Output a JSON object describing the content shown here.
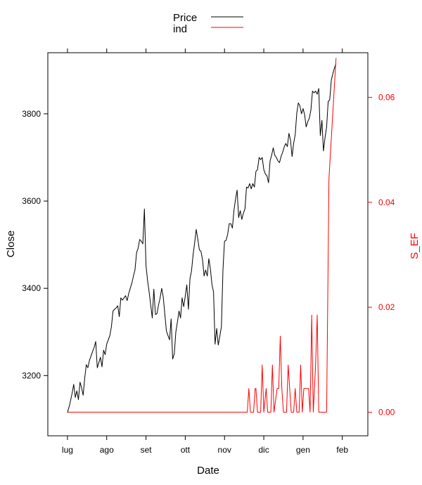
{
  "chart_data": {
    "type": "line",
    "title": "",
    "xlabel": "Date",
    "ylabel_left": "Close",
    "ylabel_right": "S_EF",
    "x_ticks": [
      "lug",
      "ago",
      "set",
      "ott",
      "nov",
      "dic",
      "gen",
      "feb"
    ],
    "y_left_ticks": [
      3200,
      3400,
      3600,
      3800
    ],
    "y_right_ticks": [
      "0.00",
      "0.02",
      "0.04",
      "0.06"
    ],
    "ylim_left": [
      3062,
      3940
    ],
    "ylim_right": [
      -0.0045,
      0.0685
    ],
    "xlim": [
      -0.5,
      7.65
    ],
    "grid": false,
    "legend": {
      "position": "top-center",
      "entries": [
        {
          "label": "Price",
          "color": "#000000"
        },
        {
          "label": "ind",
          "color": "#ff0000"
        }
      ]
    },
    "series": [
      {
        "name": "Price",
        "axis": "left",
        "color": "#000000",
        "points": [
          [
            0.0,
            3115
          ],
          [
            0.06,
            3135
          ],
          [
            0.12,
            3160
          ],
          [
            0.16,
            3180
          ],
          [
            0.2,
            3150
          ],
          [
            0.24,
            3165
          ],
          [
            0.28,
            3145
          ],
          [
            0.32,
            3185
          ],
          [
            0.36,
            3172
          ],
          [
            0.4,
            3155
          ],
          [
            0.44,
            3195
          ],
          [
            0.48,
            3225
          ],
          [
            0.52,
            3218
          ],
          [
            0.56,
            3235
          ],
          [
            0.6,
            3245
          ],
          [
            0.64,
            3255
          ],
          [
            0.68,
            3265
          ],
          [
            0.72,
            3278
          ],
          [
            0.76,
            3218
          ],
          [
            0.8,
            3230
          ],
          [
            0.84,
            3242
          ],
          [
            0.88,
            3220
          ],
          [
            0.92,
            3258
          ],
          [
            0.96,
            3248
          ],
          [
            1.0,
            3272
          ],
          [
            1.04,
            3282
          ],
          [
            1.08,
            3292
          ],
          [
            1.12,
            3312
          ],
          [
            1.16,
            3348
          ],
          [
            1.2,
            3352
          ],
          [
            1.24,
            3355
          ],
          [
            1.28,
            3360
          ],
          [
            1.32,
            3335
          ],
          [
            1.36,
            3378
          ],
          [
            1.4,
            3373
          ],
          [
            1.44,
            3378
          ],
          [
            1.48,
            3383
          ],
          [
            1.52,
            3372
          ],
          [
            1.56,
            3388
          ],
          [
            1.6,
            3400
          ],
          [
            1.64,
            3412
          ],
          [
            1.68,
            3428
          ],
          [
            1.72,
            3442
          ],
          [
            1.76,
            3482
          ],
          [
            1.8,
            3492
          ],
          [
            1.84,
            3512
          ],
          [
            1.88,
            3508
          ],
          [
            1.92,
            3502
          ],
          [
            1.96,
            3582
          ],
          [
            2.0,
            3452
          ],
          [
            2.04,
            3418
          ],
          [
            2.08,
            3392
          ],
          [
            2.12,
            3362
          ],
          [
            2.16,
            3332
          ],
          [
            2.2,
            3398
          ],
          [
            2.24,
            3340
          ],
          [
            2.28,
            3342
          ],
          [
            2.32,
            3362
          ],
          [
            2.36,
            3378
          ],
          [
            2.4,
            3400
          ],
          [
            2.44,
            3380
          ],
          [
            2.48,
            3340
          ],
          [
            2.52,
            3302
          ],
          [
            2.56,
            3292
          ],
          [
            2.6,
            3282
          ],
          [
            2.64,
            3330
          ],
          [
            2.68,
            3238
          ],
          [
            2.72,
            3250
          ],
          [
            2.76,
            3300
          ],
          [
            2.8,
            3322
          ],
          [
            2.84,
            3348
          ],
          [
            2.88,
            3332
          ],
          [
            2.92,
            3378
          ],
          [
            2.96,
            3358
          ],
          [
            3.0,
            3382
          ],
          [
            3.04,
            3408
          ],
          [
            3.08,
            3352
          ],
          [
            3.12,
            3422
          ],
          [
            3.16,
            3440
          ],
          [
            3.2,
            3478
          ],
          [
            3.24,
            3505
          ],
          [
            3.28,
            3535
          ],
          [
            3.32,
            3512
          ],
          [
            3.36,
            3488
          ],
          [
            3.4,
            3485
          ],
          [
            3.44,
            3465
          ],
          [
            3.48,
            3428
          ],
          [
            3.52,
            3442
          ],
          [
            3.56,
            3428
          ],
          [
            3.6,
            3468
          ],
          [
            3.64,
            3445
          ],
          [
            3.68,
            3408
          ],
          [
            3.72,
            3392
          ],
          [
            3.76,
            3272
          ],
          [
            3.8,
            3308
          ],
          [
            3.84,
            3270
          ],
          [
            3.88,
            3290
          ],
          [
            3.92,
            3312
          ],
          [
            3.96,
            3442
          ],
          [
            4.0,
            3508
          ],
          [
            4.04,
            3510
          ],
          [
            4.08,
            3524
          ],
          [
            4.12,
            3548
          ],
          [
            4.16,
            3548
          ],
          [
            4.2,
            3538
          ],
          [
            4.24,
            3578
          ],
          [
            4.28,
            3605
          ],
          [
            4.32,
            3625
          ],
          [
            4.36,
            3562
          ],
          [
            4.4,
            3578
          ],
          [
            4.44,
            3558
          ],
          [
            4.48,
            3572
          ],
          [
            4.52,
            3582
          ],
          [
            4.56,
            3632
          ],
          [
            4.6,
            3630
          ],
          [
            4.64,
            3640
          ],
          [
            4.68,
            3628
          ],
          [
            4.72,
            3640
          ],
          [
            4.76,
            3632
          ],
          [
            4.8,
            3668
          ],
          [
            4.84,
            3672
          ],
          [
            4.88,
            3700
          ],
          [
            4.92,
            3695
          ],
          [
            4.96,
            3700
          ],
          [
            5.0,
            3672
          ],
          [
            5.04,
            3662
          ],
          [
            5.08,
            3658
          ],
          [
            5.12,
            3642
          ],
          [
            5.16,
            3692
          ],
          [
            5.2,
            3705
          ],
          [
            5.24,
            3722
          ],
          [
            5.28,
            3705
          ],
          [
            5.32,
            3700
          ],
          [
            5.36,
            3692
          ],
          [
            5.4,
            3688
          ],
          [
            5.44,
            3702
          ],
          [
            5.48,
            3712
          ],
          [
            5.52,
            3724
          ],
          [
            5.56,
            3732
          ],
          [
            5.6,
            3725
          ],
          [
            5.64,
            3755
          ],
          [
            5.68,
            3740
          ],
          [
            5.72,
            3702
          ],
          [
            5.76,
            3732
          ],
          [
            5.8,
            3752
          ],
          [
            5.84,
            3802
          ],
          [
            5.88,
            3825
          ],
          [
            5.92,
            3818
          ],
          [
            5.96,
            3800
          ],
          [
            6.0,
            3812
          ],
          [
            6.04,
            3798
          ],
          [
            6.08,
            3770
          ],
          [
            6.12,
            3782
          ],
          [
            6.16,
            3790
          ],
          [
            6.2,
            3808
          ],
          [
            6.24,
            3852
          ],
          [
            6.28,
            3848
          ],
          [
            6.32,
            3852
          ],
          [
            6.36,
            3845
          ],
          [
            6.4,
            3858
          ],
          [
            6.44,
            3750
          ],
          [
            6.48,
            3785
          ],
          [
            6.52,
            3715
          ],
          [
            6.56,
            3745
          ],
          [
            6.6,
            3770
          ],
          [
            6.64,
            3828
          ],
          [
            6.68,
            3832
          ],
          [
            6.72,
            3878
          ],
          [
            6.76,
            3892
          ],
          [
            6.8,
            3905
          ],
          [
            6.84,
            3915
          ]
        ]
      },
      {
        "name": "ind",
        "axis": "right",
        "color": "#ff0000",
        "points": [
          [
            0.0,
            0.0
          ],
          [
            4.58,
            0.0
          ],
          [
            4.62,
            0.0045
          ],
          [
            4.66,
            0.0
          ],
          [
            4.74,
            0.0
          ],
          [
            4.78,
            0.0045
          ],
          [
            4.8,
            0.0045
          ],
          [
            4.84,
            0.0
          ],
          [
            4.92,
            0.0
          ],
          [
            4.96,
            0.009
          ],
          [
            5.0,
            0.0
          ],
          [
            5.06,
            0.0045
          ],
          [
            5.1,
            0.0
          ],
          [
            5.18,
            0.0
          ],
          [
            5.22,
            0.009
          ],
          [
            5.26,
            0.0
          ],
          [
            5.34,
            0.0045
          ],
          [
            5.38,
            0.0045
          ],
          [
            5.42,
            0.0145
          ],
          [
            5.46,
            0.0045
          ],
          [
            5.5,
            0.0
          ],
          [
            5.58,
            0.0
          ],
          [
            5.62,
            0.009
          ],
          [
            5.66,
            0.0045
          ],
          [
            5.7,
            0.0
          ],
          [
            5.76,
            0.0
          ],
          [
            5.8,
            0.0045
          ],
          [
            5.84,
            0.0
          ],
          [
            5.9,
            0.0
          ],
          [
            5.94,
            0.009
          ],
          [
            5.98,
            0.0
          ],
          [
            6.02,
            0.0045
          ],
          [
            6.06,
            0.0045
          ],
          [
            6.1,
            0.0045
          ],
          [
            6.14,
            0.0045
          ],
          [
            6.18,
            0.0
          ],
          [
            6.22,
            0.0185
          ],
          [
            6.26,
            0.0
          ],
          [
            6.32,
            0.009
          ],
          [
            6.36,
            0.0185
          ],
          [
            6.4,
            0.0
          ],
          [
            6.54,
            0.0
          ],
          [
            6.6,
            0.0
          ],
          [
            6.66,
            0.0445
          ],
          [
            6.84,
            0.0675
          ]
        ]
      }
    ]
  }
}
